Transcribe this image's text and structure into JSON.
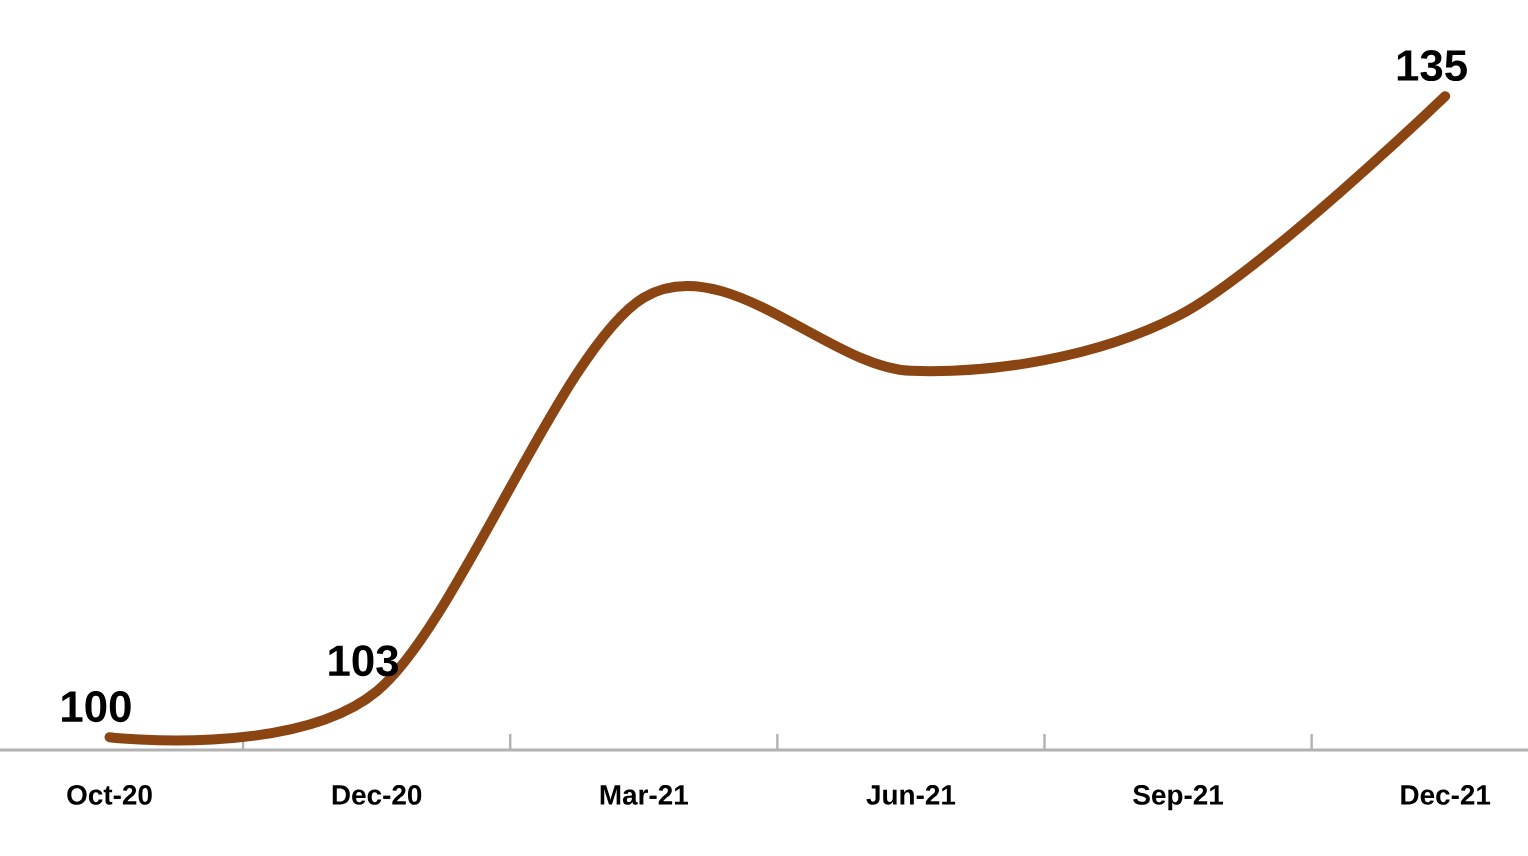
{
  "chart_data": {
    "type": "line",
    "categories": [
      "Oct-20",
      "Dec-20",
      "Mar-21",
      "Jun-21",
      "Sep-21",
      "Dec-21"
    ],
    "values": [
      100,
      102.5,
      124,
      120,
      123,
      135
    ],
    "value_labels": [
      "100",
      "103",
      null,
      null,
      null,
      "135"
    ],
    "color": "#8b4513"
  }
}
